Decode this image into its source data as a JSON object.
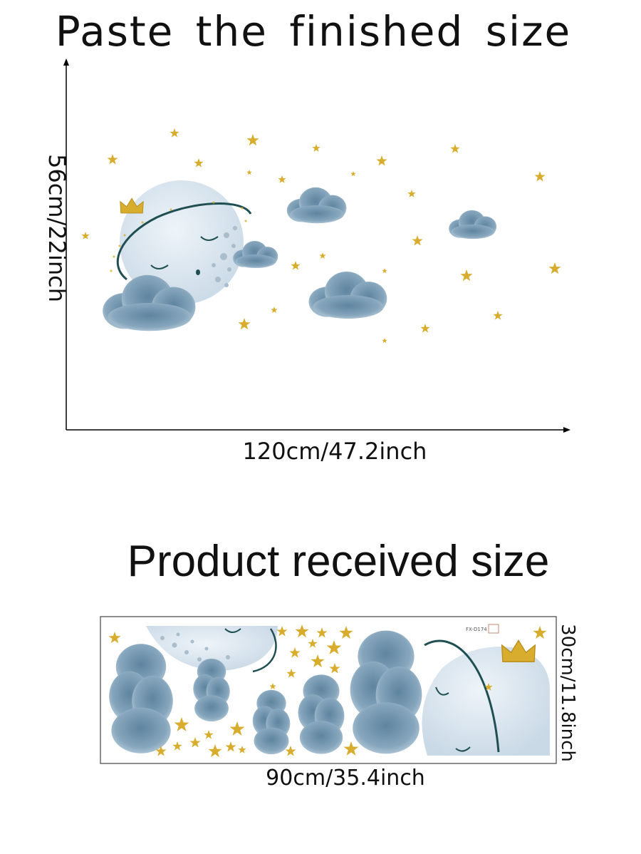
{
  "top": {
    "title": "Paste the finished size",
    "height_label": "56cm/22inch",
    "width_label": "120cm/47.2inch"
  },
  "bottom": {
    "title": "Product received size",
    "height_label": "30cm/11.8inch",
    "width_label": "90cm/35.4inch",
    "sheet_code": "FX-D174"
  },
  "colors": {
    "cloud": "#6f93ad",
    "cloud_light": "#b3c8d8",
    "moon": "#dce8f2",
    "star": "#d8ac2c",
    "arc": "#1f4f52"
  }
}
